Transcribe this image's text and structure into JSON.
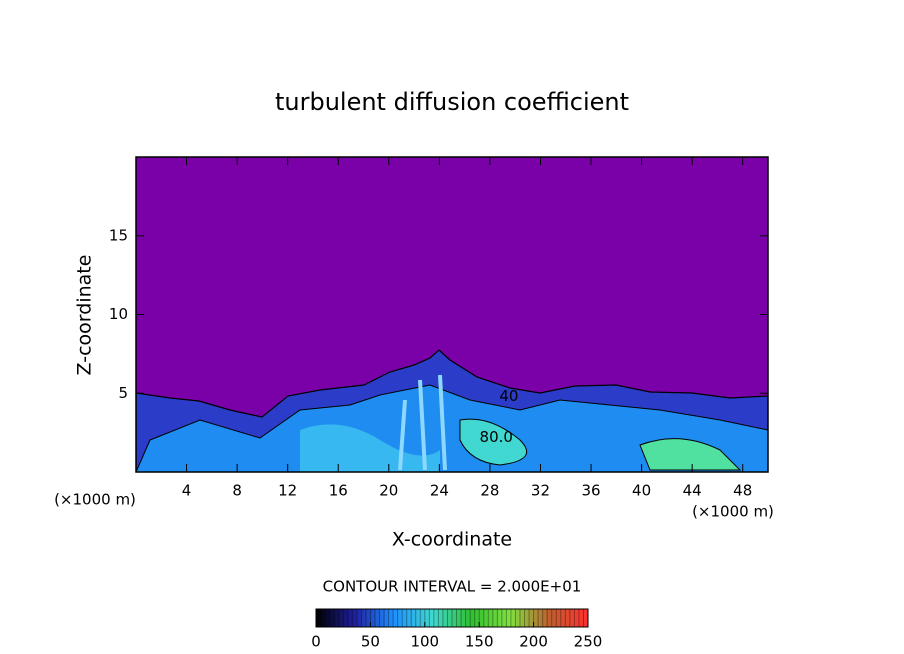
{
  "chart_data": {
    "type": "contour",
    "title": "turbulent diffusion coefficient",
    "xlabel": "X-coordinate",
    "ylabel": "Z-coordinate",
    "x_unit": "(×1000 m)",
    "xlim": [
      0,
      50
    ],
    "ylim": [
      0,
      20
    ],
    "xticks": [
      4,
      8,
      12,
      16,
      20,
      24,
      28,
      32,
      36,
      40,
      44,
      48
    ],
    "yticks": [
      5,
      10,
      15
    ],
    "contour_interval": "CONTOUR INTERVAL = 2.000E+01",
    "contour_labels": [
      {
        "text": "40",
        "x": 29.5,
        "y": 4.8
      },
      {
        "text": "80.0",
        "x": 28.5,
        "y": 2.2
      }
    ],
    "clim": [
      0,
      250
    ],
    "colorbar_ticks": [
      0,
      50,
      100,
      150,
      200,
      250
    ],
    "colormap": [
      "#000000",
      "#2020a0",
      "#1e90ff",
      "#40d8d0",
      "#30c030",
      "#80e040",
      "#c06030",
      "#ff3030"
    ]
  }
}
